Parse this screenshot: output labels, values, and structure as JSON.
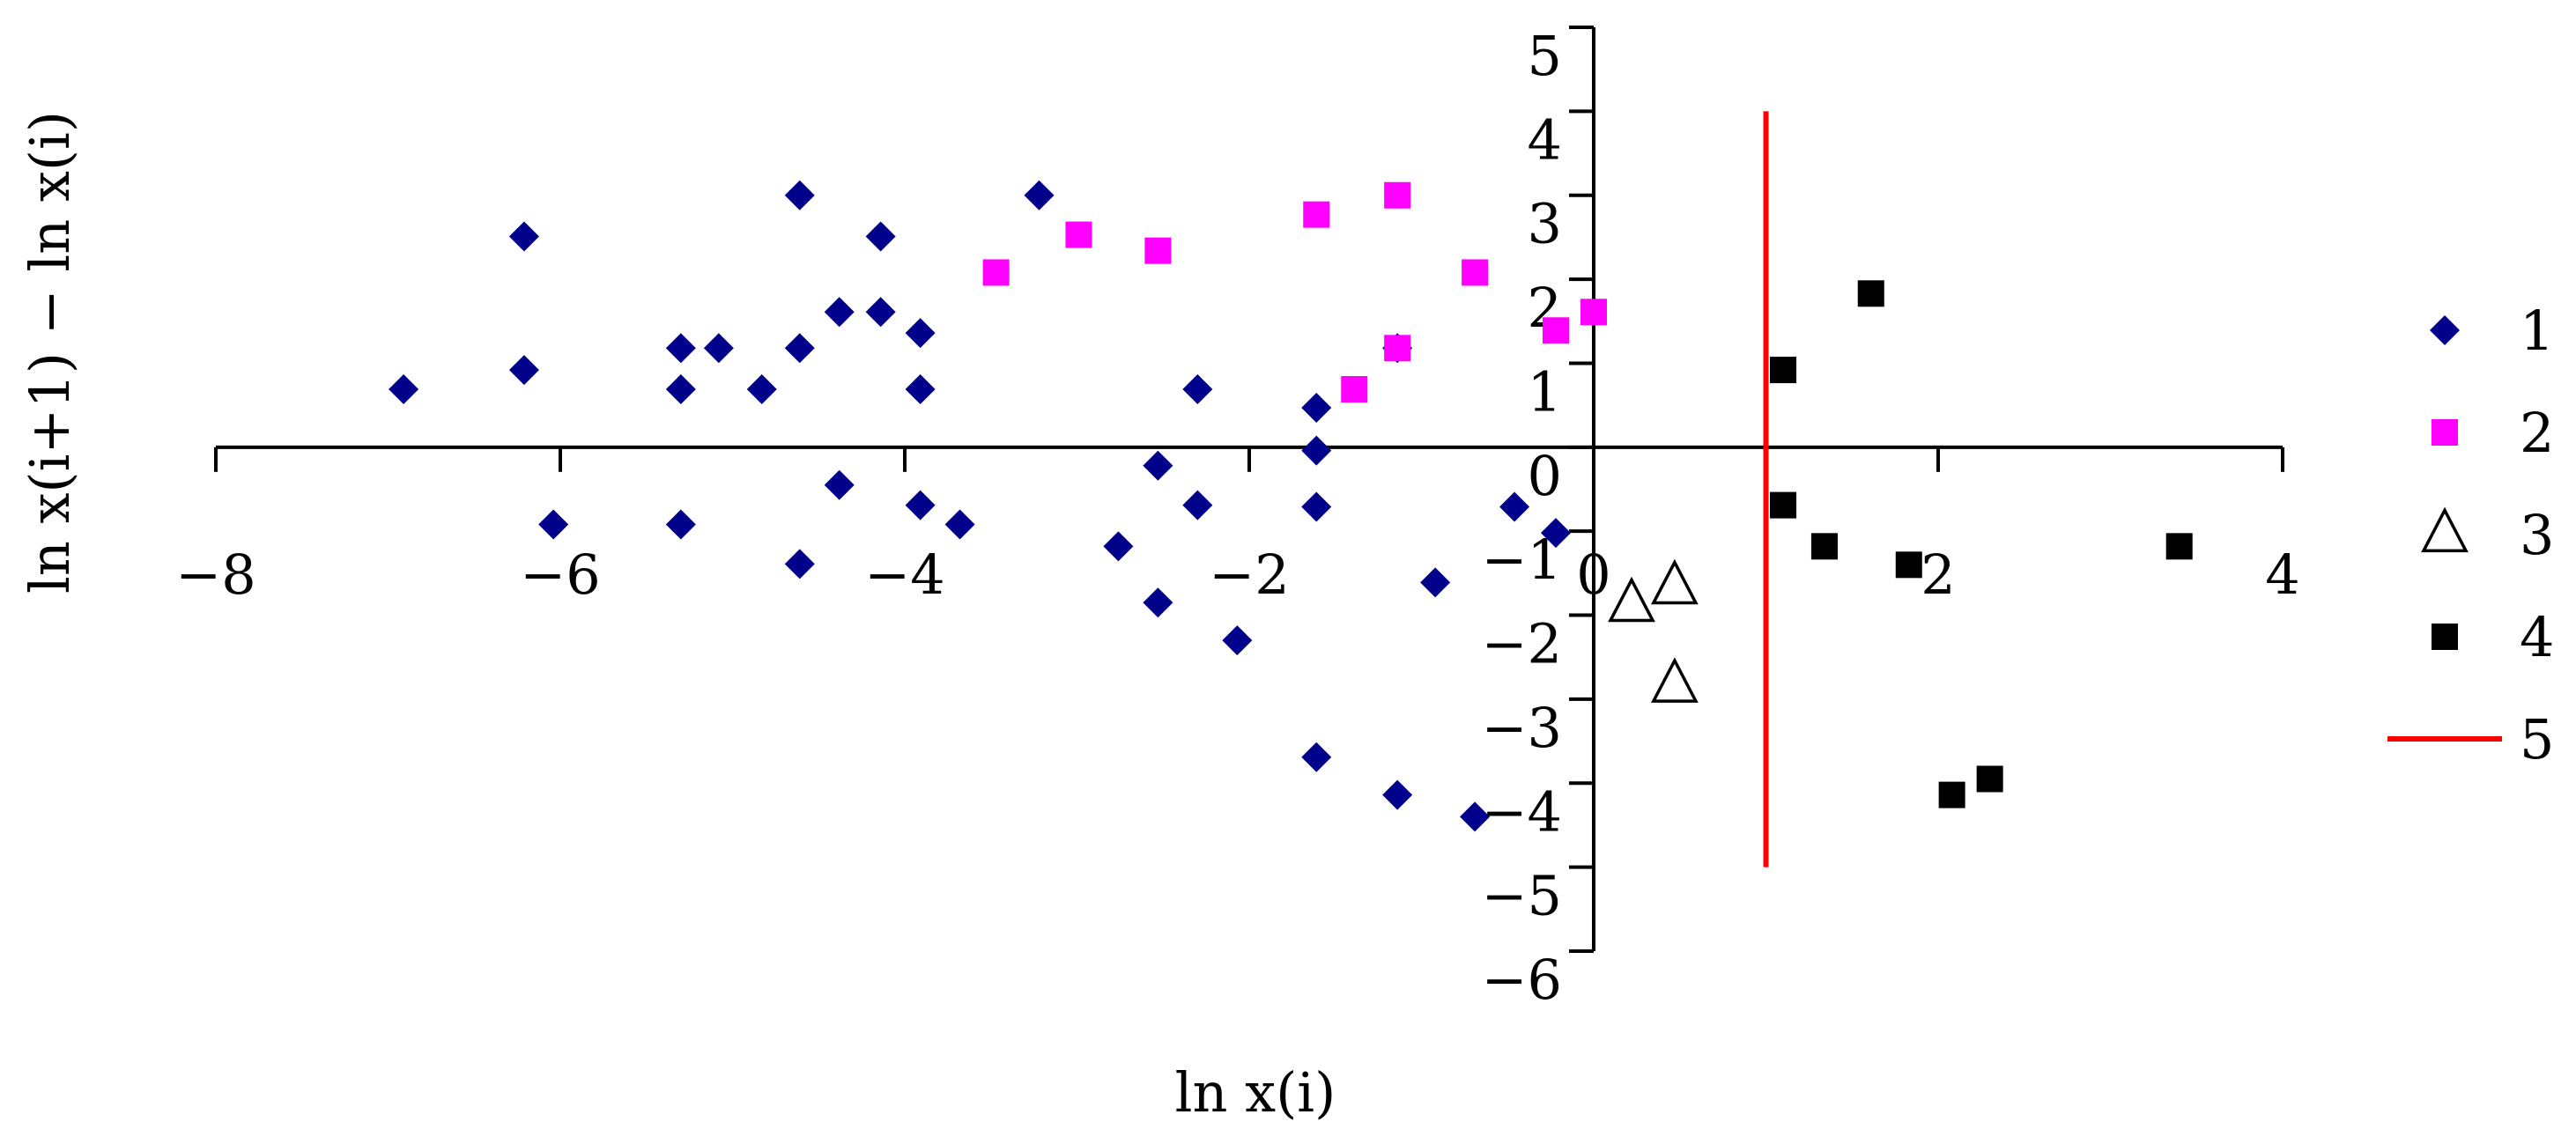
{
  "chart_data": {
    "type": "scatter",
    "xlabel": "ln x(i)",
    "ylabel": "ln x(i+1) − ln x(i)",
    "xlim": [
      -8,
      4
    ],
    "ylim": [
      -6,
      5
    ],
    "x_ticks": [
      -8,
      -6,
      -4,
      -2,
      0,
      2,
      4
    ],
    "y_ticks": [
      -6,
      -5,
      -4,
      -3,
      -2,
      -1,
      0,
      1,
      2,
      3,
      4,
      5
    ],
    "x_tick_labels": [
      "−8",
      "−6",
      "−4",
      "−2",
      "0",
      "2",
      "4"
    ],
    "y_tick_labels": [
      "−6",
      "−5",
      "−4",
      "−3",
      "−2",
      "−1",
      "0",
      "1",
      "2",
      "3",
      "4",
      "5"
    ],
    "axes_cross_at": [
      0,
      0
    ],
    "grid": false,
    "legend_position": "right",
    "series": [
      {
        "name": "1",
        "marker": "diamond",
        "color": "#00008B",
        "points": [
          [
            -6.91,
            0.69
          ],
          [
            -6.21,
            0.92
          ],
          [
            -6.21,
            2.51
          ],
          [
            -6.04,
            -0.92
          ],
          [
            -5.3,
            0.69
          ],
          [
            -5.3,
            1.18
          ],
          [
            -5.3,
            -0.92
          ],
          [
            -5.08,
            1.18
          ],
          [
            -4.83,
            0.69
          ],
          [
            -4.61,
            3.0
          ],
          [
            -4.61,
            1.18
          ],
          [
            -4.61,
            -1.39
          ],
          [
            -4.38,
            1.61
          ],
          [
            -4.38,
            -0.45
          ],
          [
            -4.14,
            2.51
          ],
          [
            -4.14,
            1.61
          ],
          [
            -3.91,
            1.36
          ],
          [
            -3.91,
            0.69
          ],
          [
            -3.91,
            -0.69
          ],
          [
            -3.68,
            -0.92
          ],
          [
            -3.22,
            3.0
          ],
          [
            -2.76,
            -1.18
          ],
          [
            -2.53,
            -0.22
          ],
          [
            -2.53,
            -1.85
          ],
          [
            -2.3,
            0.69
          ],
          [
            -2.3,
            -0.69
          ],
          [
            -2.07,
            -2.3
          ],
          [
            -1.61,
            0.47
          ],
          [
            -1.61,
            -0.04
          ],
          [
            -1.61,
            -0.71
          ],
          [
            -1.61,
            -3.69
          ],
          [
            -1.14,
            1.18
          ],
          [
            -1.14,
            -4.14
          ],
          [
            -0.92,
            -1.61
          ],
          [
            -0.69,
            -4.4
          ],
          [
            -0.46,
            -0.71
          ],
          [
            -0.22,
            -1.02
          ]
        ]
      },
      {
        "name": "2",
        "marker": "square",
        "color": "#FF00FF",
        "points": [
          [
            -3.47,
            2.08
          ],
          [
            -2.99,
            2.53
          ],
          [
            -2.53,
            2.34
          ],
          [
            -1.61,
            2.77
          ],
          [
            -1.39,
            0.69
          ],
          [
            -1.14,
            3.0
          ],
          [
            -1.14,
            1.18
          ],
          [
            -0.69,
            2.08
          ],
          [
            -0.22,
            1.39
          ],
          [
            0.0,
            1.61
          ]
        ]
      },
      {
        "name": "3",
        "marker": "triangle",
        "color": "#000000",
        "points": [
          [
            0.22,
            -1.87
          ],
          [
            0.47,
            -1.66
          ],
          [
            0.47,
            -2.83
          ]
        ]
      },
      {
        "name": "4",
        "marker": "square",
        "color": "#000000",
        "points": [
          [
            1.1,
            0.92
          ],
          [
            1.1,
            -0.69
          ],
          [
            1.34,
            -1.18
          ],
          [
            1.61,
            1.83
          ],
          [
            1.83,
            -1.4
          ],
          [
            2.08,
            -4.14
          ],
          [
            2.3,
            -3.95
          ],
          [
            3.4,
            -1.18
          ]
        ]
      },
      {
        "name": "5",
        "marker": "line",
        "color": "#FF0000",
        "points": [
          [
            1.0,
            -5.0
          ],
          [
            1.0,
            4.0
          ]
        ]
      }
    ]
  }
}
